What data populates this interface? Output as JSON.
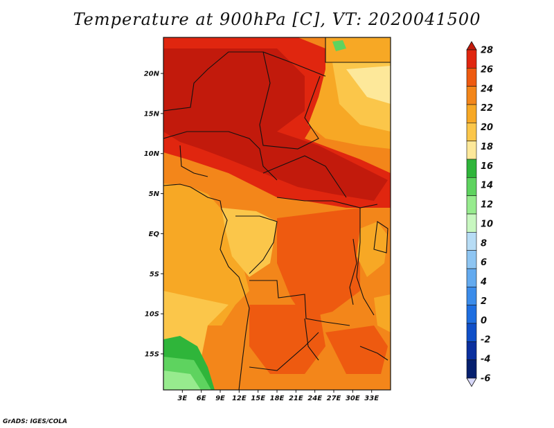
{
  "title": "Temperature at 900hPa [C], VT: 2020041500",
  "credit": "GrADS: IGES/COLA",
  "map": {
    "lon_range": [
      0,
      36
    ],
    "lat_range": [
      -19.5,
      24.5
    ],
    "lat_labels": [
      "20N",
      "15N",
      "10N",
      "5N",
      "EQ",
      "5S",
      "10S",
      "15S"
    ],
    "lat_values": [
      20,
      15,
      10,
      5,
      0,
      -5,
      -10,
      -15
    ],
    "lon_labels": [
      "3E",
      "6E",
      "9E",
      "12E",
      "15E",
      "18E",
      "21E",
      "24E",
      "27E",
      "30E",
      "33E"
    ],
    "lon_values": [
      3,
      6,
      9,
      12,
      15,
      18,
      21,
      24,
      27,
      30,
      33
    ]
  },
  "colorbar": {
    "labels": [
      "28",
      "26",
      "24",
      "22",
      "20",
      "18",
      "16",
      "14",
      "12",
      "10",
      "8",
      "6",
      "4",
      "2",
      "0",
      "-2",
      "-4",
      "-6"
    ],
    "colors": [
      "#c21a0c",
      "#e0260f",
      "#ee5a10",
      "#f3861a",
      "#f7a825",
      "#fbc64a",
      "#fde89a",
      "#2fb53a",
      "#5ed35f",
      "#97eb8e",
      "#c8f7c0",
      "#b7dcf5",
      "#8ec5f2",
      "#63aaef",
      "#3b8cea",
      "#1e6ee0",
      "#0f4fc8",
      "#0a2f9e",
      "#051f6e",
      "#d8d8f8"
    ]
  }
}
